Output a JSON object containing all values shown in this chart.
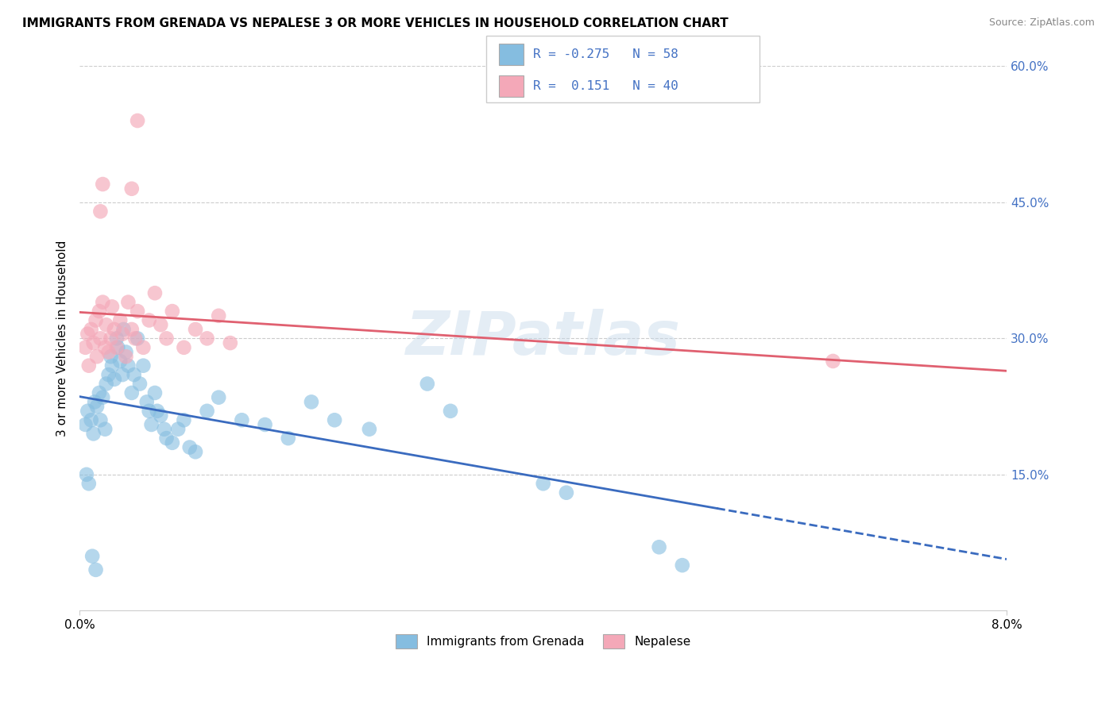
{
  "title": "IMMIGRANTS FROM GRENADA VS NEPALESE 3 OR MORE VEHICLES IN HOUSEHOLD CORRELATION CHART",
  "source": "Source: ZipAtlas.com",
  "ylabel": "3 or more Vehicles in Household",
  "x_lim": [
    0.0,
    8.0
  ],
  "y_lim": [
    0.0,
    60.0
  ],
  "color_blue": "#85bde0",
  "color_pink": "#f4a8b8",
  "color_blue_line": "#3a6bbf",
  "color_pink_line": "#e06070",
  "color_blue_text": "#4472c4",
  "watermark": "ZIPatlas",
  "grenada_scatter": [
    [
      0.05,
      20.5
    ],
    [
      0.07,
      22.0
    ],
    [
      0.1,
      21.0
    ],
    [
      0.12,
      19.5
    ],
    [
      0.13,
      23.0
    ],
    [
      0.15,
      22.5
    ],
    [
      0.17,
      24.0
    ],
    [
      0.18,
      21.0
    ],
    [
      0.2,
      23.5
    ],
    [
      0.22,
      20.0
    ],
    [
      0.23,
      25.0
    ],
    [
      0.25,
      26.0
    ],
    [
      0.27,
      28.0
    ],
    [
      0.28,
      27.0
    ],
    [
      0.3,
      25.5
    ],
    [
      0.32,
      30.0
    ],
    [
      0.33,
      29.0
    ],
    [
      0.35,
      27.5
    ],
    [
      0.37,
      26.0
    ],
    [
      0.38,
      31.0
    ],
    [
      0.4,
      28.5
    ],
    [
      0.42,
      27.0
    ],
    [
      0.45,
      24.0
    ],
    [
      0.47,
      26.0
    ],
    [
      0.5,
      30.0
    ],
    [
      0.52,
      25.0
    ],
    [
      0.55,
      27.0
    ],
    [
      0.58,
      23.0
    ],
    [
      0.6,
      22.0
    ],
    [
      0.62,
      20.5
    ],
    [
      0.65,
      24.0
    ],
    [
      0.67,
      22.0
    ],
    [
      0.7,
      21.5
    ],
    [
      0.73,
      20.0
    ],
    [
      0.75,
      19.0
    ],
    [
      0.8,
      18.5
    ],
    [
      0.85,
      20.0
    ],
    [
      0.9,
      21.0
    ],
    [
      0.95,
      18.0
    ],
    [
      1.0,
      17.5
    ],
    [
      1.1,
      22.0
    ],
    [
      1.2,
      23.5
    ],
    [
      1.4,
      21.0
    ],
    [
      1.6,
      20.5
    ],
    [
      1.8,
      19.0
    ],
    [
      2.0,
      23.0
    ],
    [
      2.2,
      21.0
    ],
    [
      2.5,
      20.0
    ],
    [
      3.0,
      25.0
    ],
    [
      3.2,
      22.0
    ],
    [
      4.0,
      14.0
    ],
    [
      4.2,
      13.0
    ],
    [
      5.0,
      7.0
    ],
    [
      5.2,
      5.0
    ],
    [
      0.06,
      15.0
    ],
    [
      0.08,
      14.0
    ],
    [
      0.11,
      6.0
    ],
    [
      0.14,
      4.5
    ]
  ],
  "nepalese_scatter": [
    [
      0.05,
      29.0
    ],
    [
      0.07,
      30.5
    ],
    [
      0.08,
      27.0
    ],
    [
      0.1,
      31.0
    ],
    [
      0.12,
      29.5
    ],
    [
      0.14,
      32.0
    ],
    [
      0.15,
      28.0
    ],
    [
      0.17,
      33.0
    ],
    [
      0.18,
      30.0
    ],
    [
      0.2,
      34.0
    ],
    [
      0.22,
      29.0
    ],
    [
      0.23,
      31.5
    ],
    [
      0.25,
      28.5
    ],
    [
      0.27,
      30.0
    ],
    [
      0.28,
      33.5
    ],
    [
      0.3,
      31.0
    ],
    [
      0.32,
      29.0
    ],
    [
      0.35,
      32.0
    ],
    [
      0.37,
      30.5
    ],
    [
      0.4,
      28.0
    ],
    [
      0.42,
      34.0
    ],
    [
      0.45,
      31.0
    ],
    [
      0.48,
      30.0
    ],
    [
      0.5,
      33.0
    ],
    [
      0.55,
      29.0
    ],
    [
      0.6,
      32.0
    ],
    [
      0.65,
      35.0
    ],
    [
      0.7,
      31.5
    ],
    [
      0.75,
      30.0
    ],
    [
      0.8,
      33.0
    ],
    [
      0.9,
      29.0
    ],
    [
      1.0,
      31.0
    ],
    [
      1.1,
      30.0
    ],
    [
      1.2,
      32.5
    ],
    [
      1.3,
      29.5
    ],
    [
      0.18,
      44.0
    ],
    [
      0.2,
      47.0
    ],
    [
      0.45,
      46.5
    ],
    [
      0.5,
      54.0
    ],
    [
      6.5,
      27.5
    ]
  ]
}
